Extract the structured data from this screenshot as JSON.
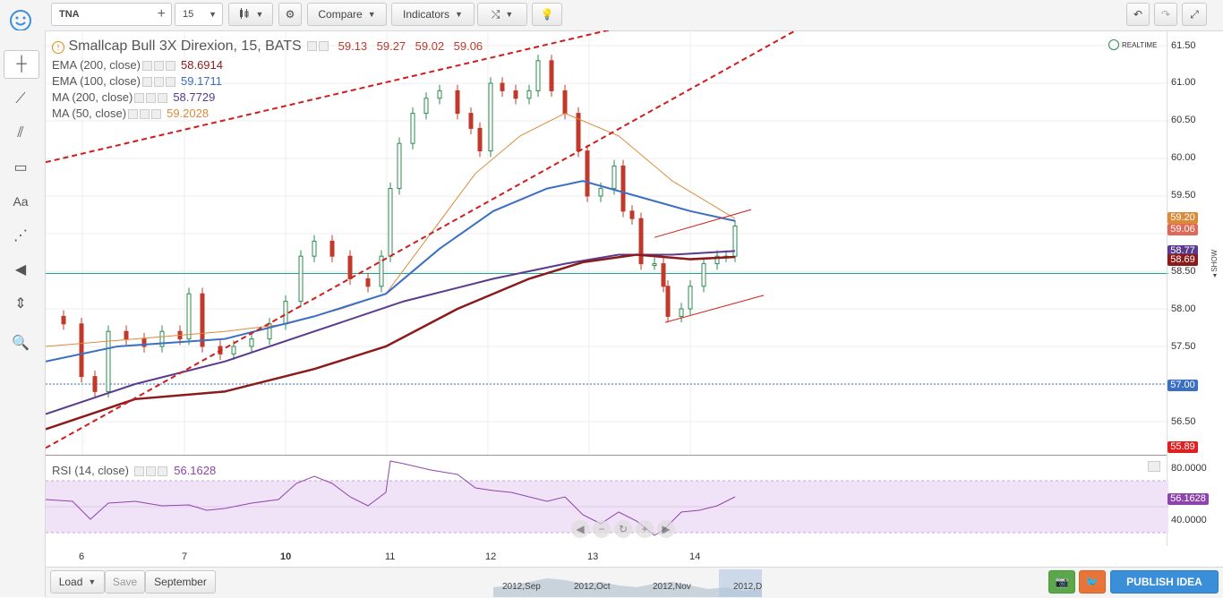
{
  "toolbar": {
    "symbol": "TNA",
    "interval": "15",
    "compare_label": "Compare",
    "indicators_label": "Indicators"
  },
  "chart_title": {
    "symbol_name": "Smallcap Bull 3X Direxion, 15, BATS",
    "open": "59.13",
    "high": "59.27",
    "low": "59.02",
    "close": "59.06"
  },
  "realtime_label": "REALTIME",
  "legend": [
    {
      "name": "EMA (200, close)",
      "value": "58.6914",
      "color": "#8b1a1a"
    },
    {
      "name": "EMA (100, close)",
      "value": "59.1711",
      "color": "#3b6fc4"
    },
    {
      "name": "MA (200, close)",
      "value": "58.7729",
      "color": "#5a3a8c"
    },
    {
      "name": "MA (50, close)",
      "value": "59.2028",
      "color": "#d98b3a"
    }
  ],
  "rsi": {
    "label": "RSI (14, close)",
    "value": "56.1628",
    "ticks": [
      "80.0000",
      "40.0000"
    ],
    "tag": "56.1628"
  },
  "price_axis": [
    "61.50",
    "61.00",
    "60.50",
    "60.00",
    "59.50",
    "59.00",
    "58.50",
    "58.00",
    "57.50",
    "57.00",
    "56.50"
  ],
  "price_tags": [
    {
      "label": "59.20",
      "color": "#d98b3a"
    },
    {
      "label": "59.06",
      "color": "#e06a5a"
    },
    {
      "label": "58.77",
      "color": "#5a3a8c"
    },
    {
      "label": "58.69",
      "color": "#8b1a1a"
    },
    {
      "label": "57.00",
      "color": "#3b6fc4"
    },
    {
      "label": "55.89",
      "color": "#e02020"
    }
  ],
  "x_labels": [
    "6",
    "7",
    "10",
    "11",
    "12",
    "13",
    "14"
  ],
  "side_label": "SHOW",
  "navigator_labels": [
    "2012,Sep",
    "2012,Oct",
    "2012,Nov",
    "2012,D"
  ],
  "bottom": {
    "load": "Load",
    "save": "Save",
    "period": "September",
    "publish": "PUBLISH IDEA"
  },
  "colors": {
    "up": "#2d8a4e",
    "down": "#c0392b",
    "trend": "#d01c1c",
    "support": "#1aaa8a"
  }
}
